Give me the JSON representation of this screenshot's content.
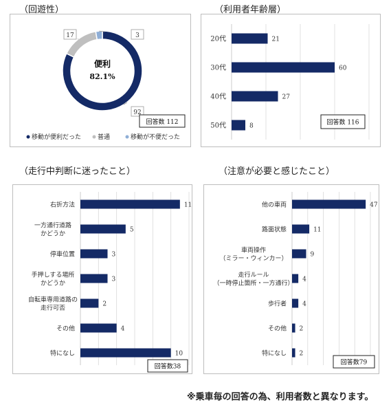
{
  "charts": [
    {
      "id": "pie",
      "title": "（回遊性）",
      "chart_data": {
        "type": "pie",
        "title": "（回遊性）",
        "categories": [
          "移動が便利だった",
          "普通",
          "移動が不便だった"
        ],
        "values": [
          92,
          17,
          3
        ],
        "center_label": "便利",
        "center_value": "82.1%",
        "answer_count": "回答数 112",
        "legend": "bottom",
        "colors": [
          "#142a66",
          "#bfbfbf",
          "#8faed6"
        ]
      }
    },
    {
      "id": "age",
      "title": "（利用者年齢層）",
      "chart_data": {
        "type": "bar",
        "orientation": "horizontal",
        "title": "（利用者年齢層）",
        "categories": [
          "20代",
          "30代",
          "40代",
          "50代"
        ],
        "values": [
          21,
          60,
          27,
          8
        ],
        "xlim": [
          0,
          80
        ],
        "grid": true,
        "answer_count": "回答数 116",
        "color": "#142a66"
      }
    },
    {
      "id": "hesitate",
      "title": "（走行中判断に迷ったこと）",
      "chart_data": {
        "type": "bar",
        "orientation": "horizontal",
        "title": "（走行中判断に迷ったこと）",
        "categories": [
          [
            "右折方法"
          ],
          [
            "一方通行道路",
            "かどうか"
          ],
          [
            "停車位置"
          ],
          [
            "手押しする場所",
            "かどうか"
          ],
          [
            "自転車専用道路の",
            "走行可否"
          ],
          [
            "その他"
          ],
          [
            "特になし"
          ]
        ],
        "values": [
          11,
          5,
          3,
          3,
          2,
          4,
          10
        ],
        "xlim": [
          0,
          12
        ],
        "grid": true,
        "answer_count": "回答数38",
        "color": "#142a66"
      }
    },
    {
      "id": "caution",
      "title": "（注意が必要と感じたこと）",
      "chart_data": {
        "type": "bar",
        "orientation": "horizontal",
        "title": "（注意が必要と感じたこと）",
        "categories": [
          [
            "他の車両"
          ],
          [
            "路面状態"
          ],
          [
            "車両操作",
            "（ミラー・ウィンカー）"
          ],
          [
            "走行ルール",
            "（一時停止箇所・一方通行）"
          ],
          [
            "歩行者"
          ],
          [
            "その他"
          ],
          [
            "特になし"
          ]
        ],
        "values": [
          47,
          11,
          9,
          4,
          4,
          2,
          2
        ],
        "xlim": [
          0,
          50
        ],
        "grid": true,
        "answer_count": "回答数79",
        "color": "#142a66"
      }
    }
  ],
  "footnote": "※乗車毎の回答の為、利用者数と異なります。"
}
